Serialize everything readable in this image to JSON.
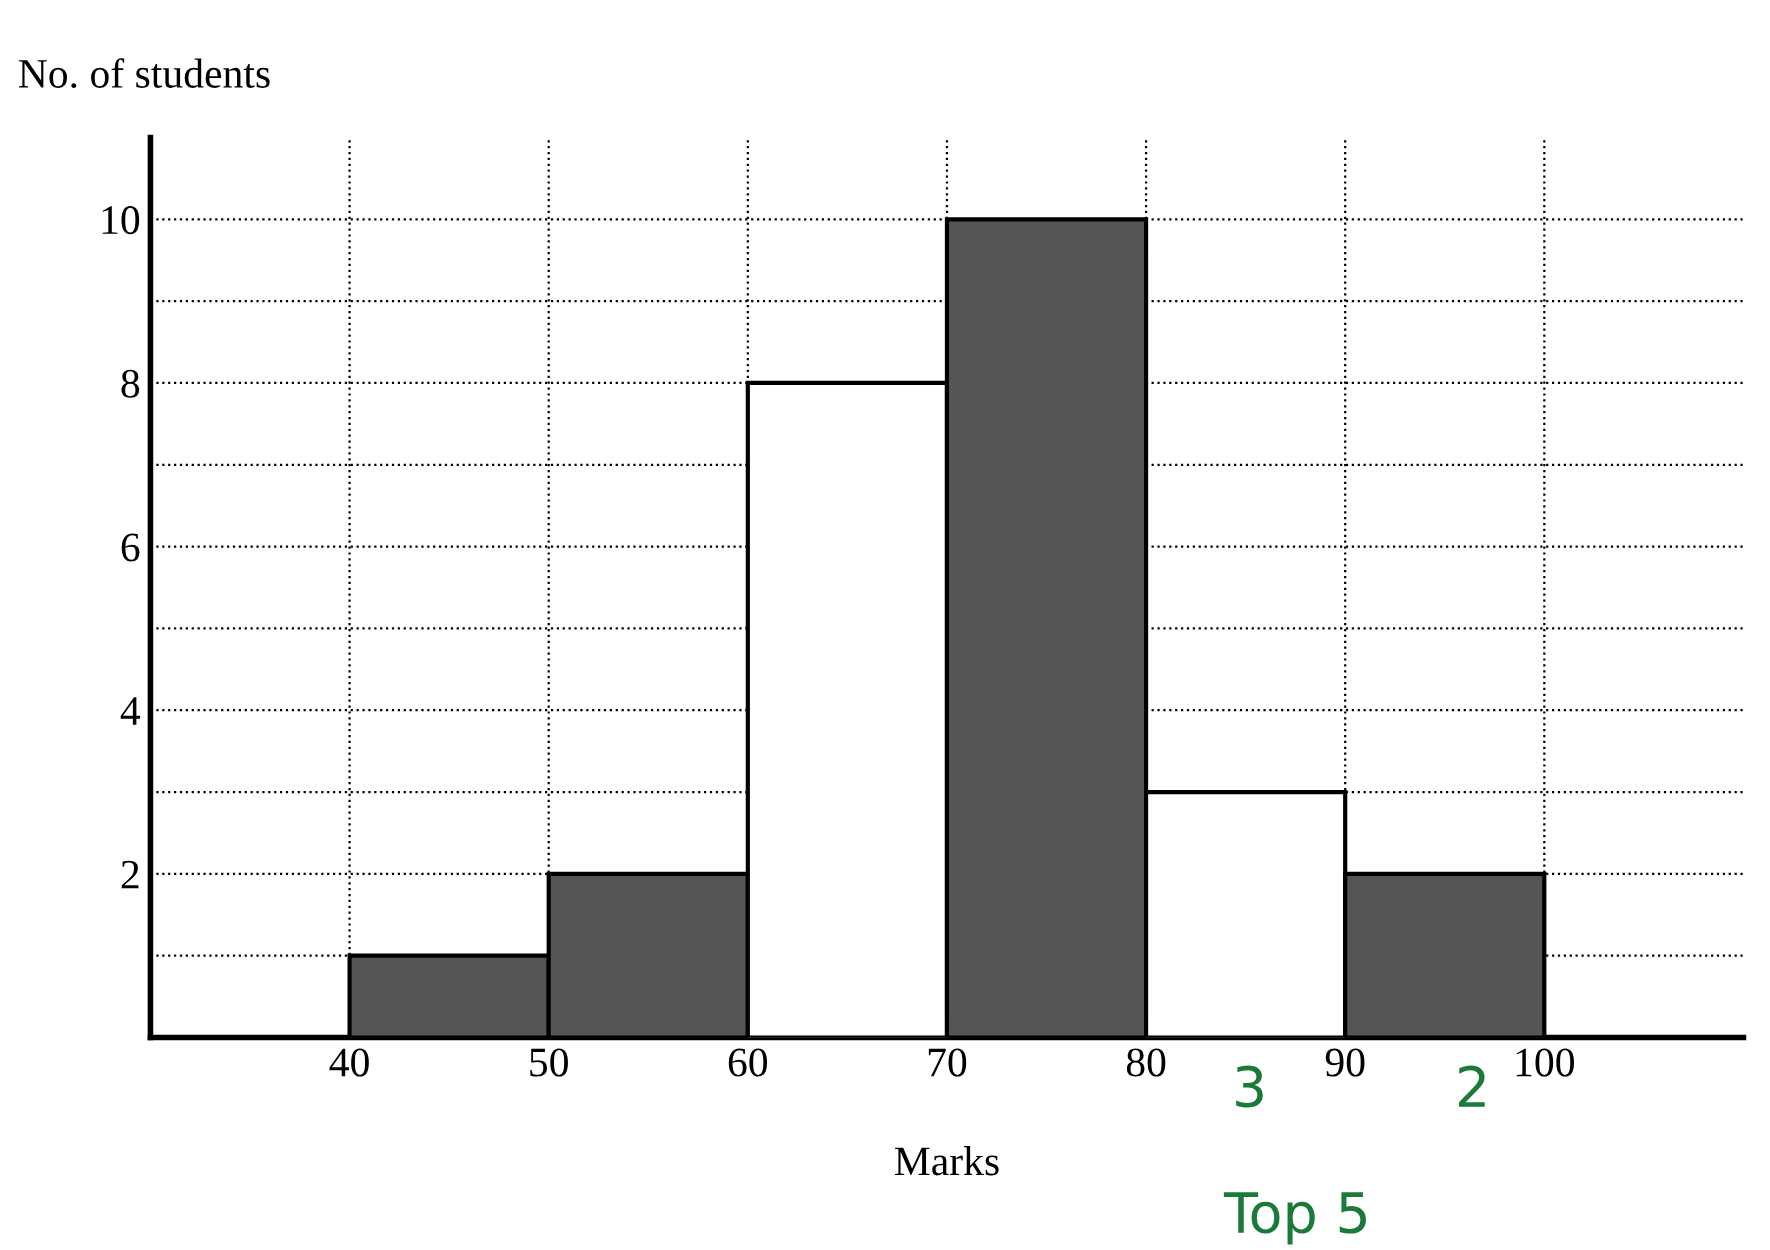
{
  "chart_data": {
    "type": "histogram",
    "xlabel": "Marks",
    "ylabel": "No. of students",
    "bins": [
      40,
      50,
      60,
      70,
      80,
      90,
      100
    ],
    "values": [
      1,
      2,
      8,
      10,
      3,
      2
    ],
    "colors": [
      "#555555",
      "#555555",
      "#ffffff",
      "#555555",
      "#ffffff",
      "#555555"
    ],
    "xlim": [
      30,
      110
    ],
    "xticks": [
      40,
      50,
      60,
      70,
      80,
      90,
      100
    ],
    "ylim": [
      0,
      11
    ],
    "yticks": [
      {
        "value": 1,
        "label": null
      },
      2,
      {
        "value": 3,
        "label": null
      },
      4,
      {
        "value": 5,
        "label": null
      },
      6,
      {
        "value": 7,
        "label": null
      },
      8,
      {
        "value": 9,
        "label": null
      },
      10
    ],
    "grid": true,
    "annotations": [
      "3",
      "2",
      "Top 5"
    ]
  }
}
